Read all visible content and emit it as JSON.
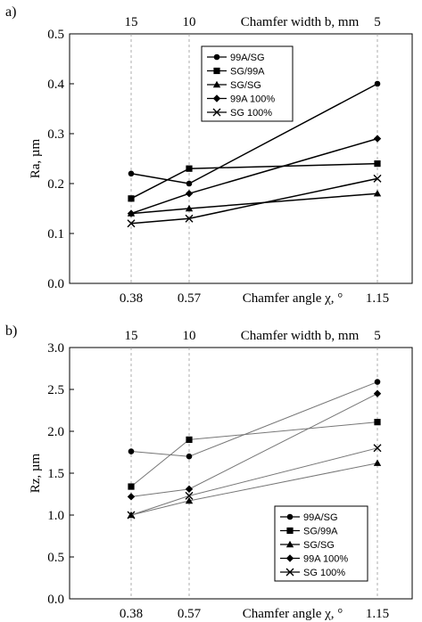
{
  "chart_data": [
    {
      "panel": "a)",
      "type": "line",
      "x": [
        0.38,
        0.57,
        1.15
      ],
      "x_ticklabels": [
        "0.38",
        "0.57",
        "1.15"
      ],
      "x_top_ticklabels": [
        "15",
        "10",
        "5"
      ],
      "xlabel": "Chamfer angle χ, °",
      "xlabel_top": "Chamfer width b, mm",
      "ylabel": "Ra, µm",
      "ylim": [
        0,
        0.5
      ],
      "yticks": [
        "0.0",
        "0.1",
        "0.2",
        "0.3",
        "0.4",
        "0.5"
      ],
      "legend_position": "top-center",
      "series": [
        {
          "name": "99A/SG",
          "marker": "circle",
          "values": [
            0.22,
            0.2,
            0.4
          ]
        },
        {
          "name": "SG/99A",
          "marker": "square",
          "values": [
            0.17,
            0.23,
            0.24
          ]
        },
        {
          "name": "SG/SG",
          "marker": "triangle",
          "values": [
            0.14,
            0.15,
            0.18
          ]
        },
        {
          "name": "99A 100%",
          "marker": "diamond",
          "values": [
            0.14,
            0.18,
            0.29
          ]
        },
        {
          "name": "SG 100%",
          "marker": "cross",
          "values": [
            0.12,
            0.13,
            0.21
          ]
        }
      ]
    },
    {
      "panel": "b)",
      "type": "line",
      "x": [
        0.38,
        0.57,
        1.15
      ],
      "x_ticklabels": [
        "0.38",
        "0.57",
        "1.15"
      ],
      "x_top_ticklabels": [
        "15",
        "10",
        "5"
      ],
      "xlabel": "Chamfer angle χ, °",
      "xlabel_top": "Chamfer width b, mm",
      "ylabel": "Rz, µm",
      "ylim": [
        0,
        3.0
      ],
      "yticks": [
        "0.0",
        "0.5",
        "1.0",
        "1.5",
        "2.0",
        "2.5",
        "3.0"
      ],
      "legend_position": "bottom-right",
      "series": [
        {
          "name": "99A/SG",
          "marker": "circle",
          "values": [
            1.76,
            1.7,
            2.59
          ]
        },
        {
          "name": "SG/99A",
          "marker": "square",
          "values": [
            1.34,
            1.9,
            2.11
          ]
        },
        {
          "name": "SG/SG",
          "marker": "triangle",
          "values": [
            1.0,
            1.17,
            1.62
          ]
        },
        {
          "name": "99A 100%",
          "marker": "diamond",
          "values": [
            1.22,
            1.31,
            2.45
          ]
        },
        {
          "name": "SG 100%",
          "marker": "cross",
          "values": [
            1.0,
            1.23,
            1.8
          ]
        }
      ]
    }
  ]
}
